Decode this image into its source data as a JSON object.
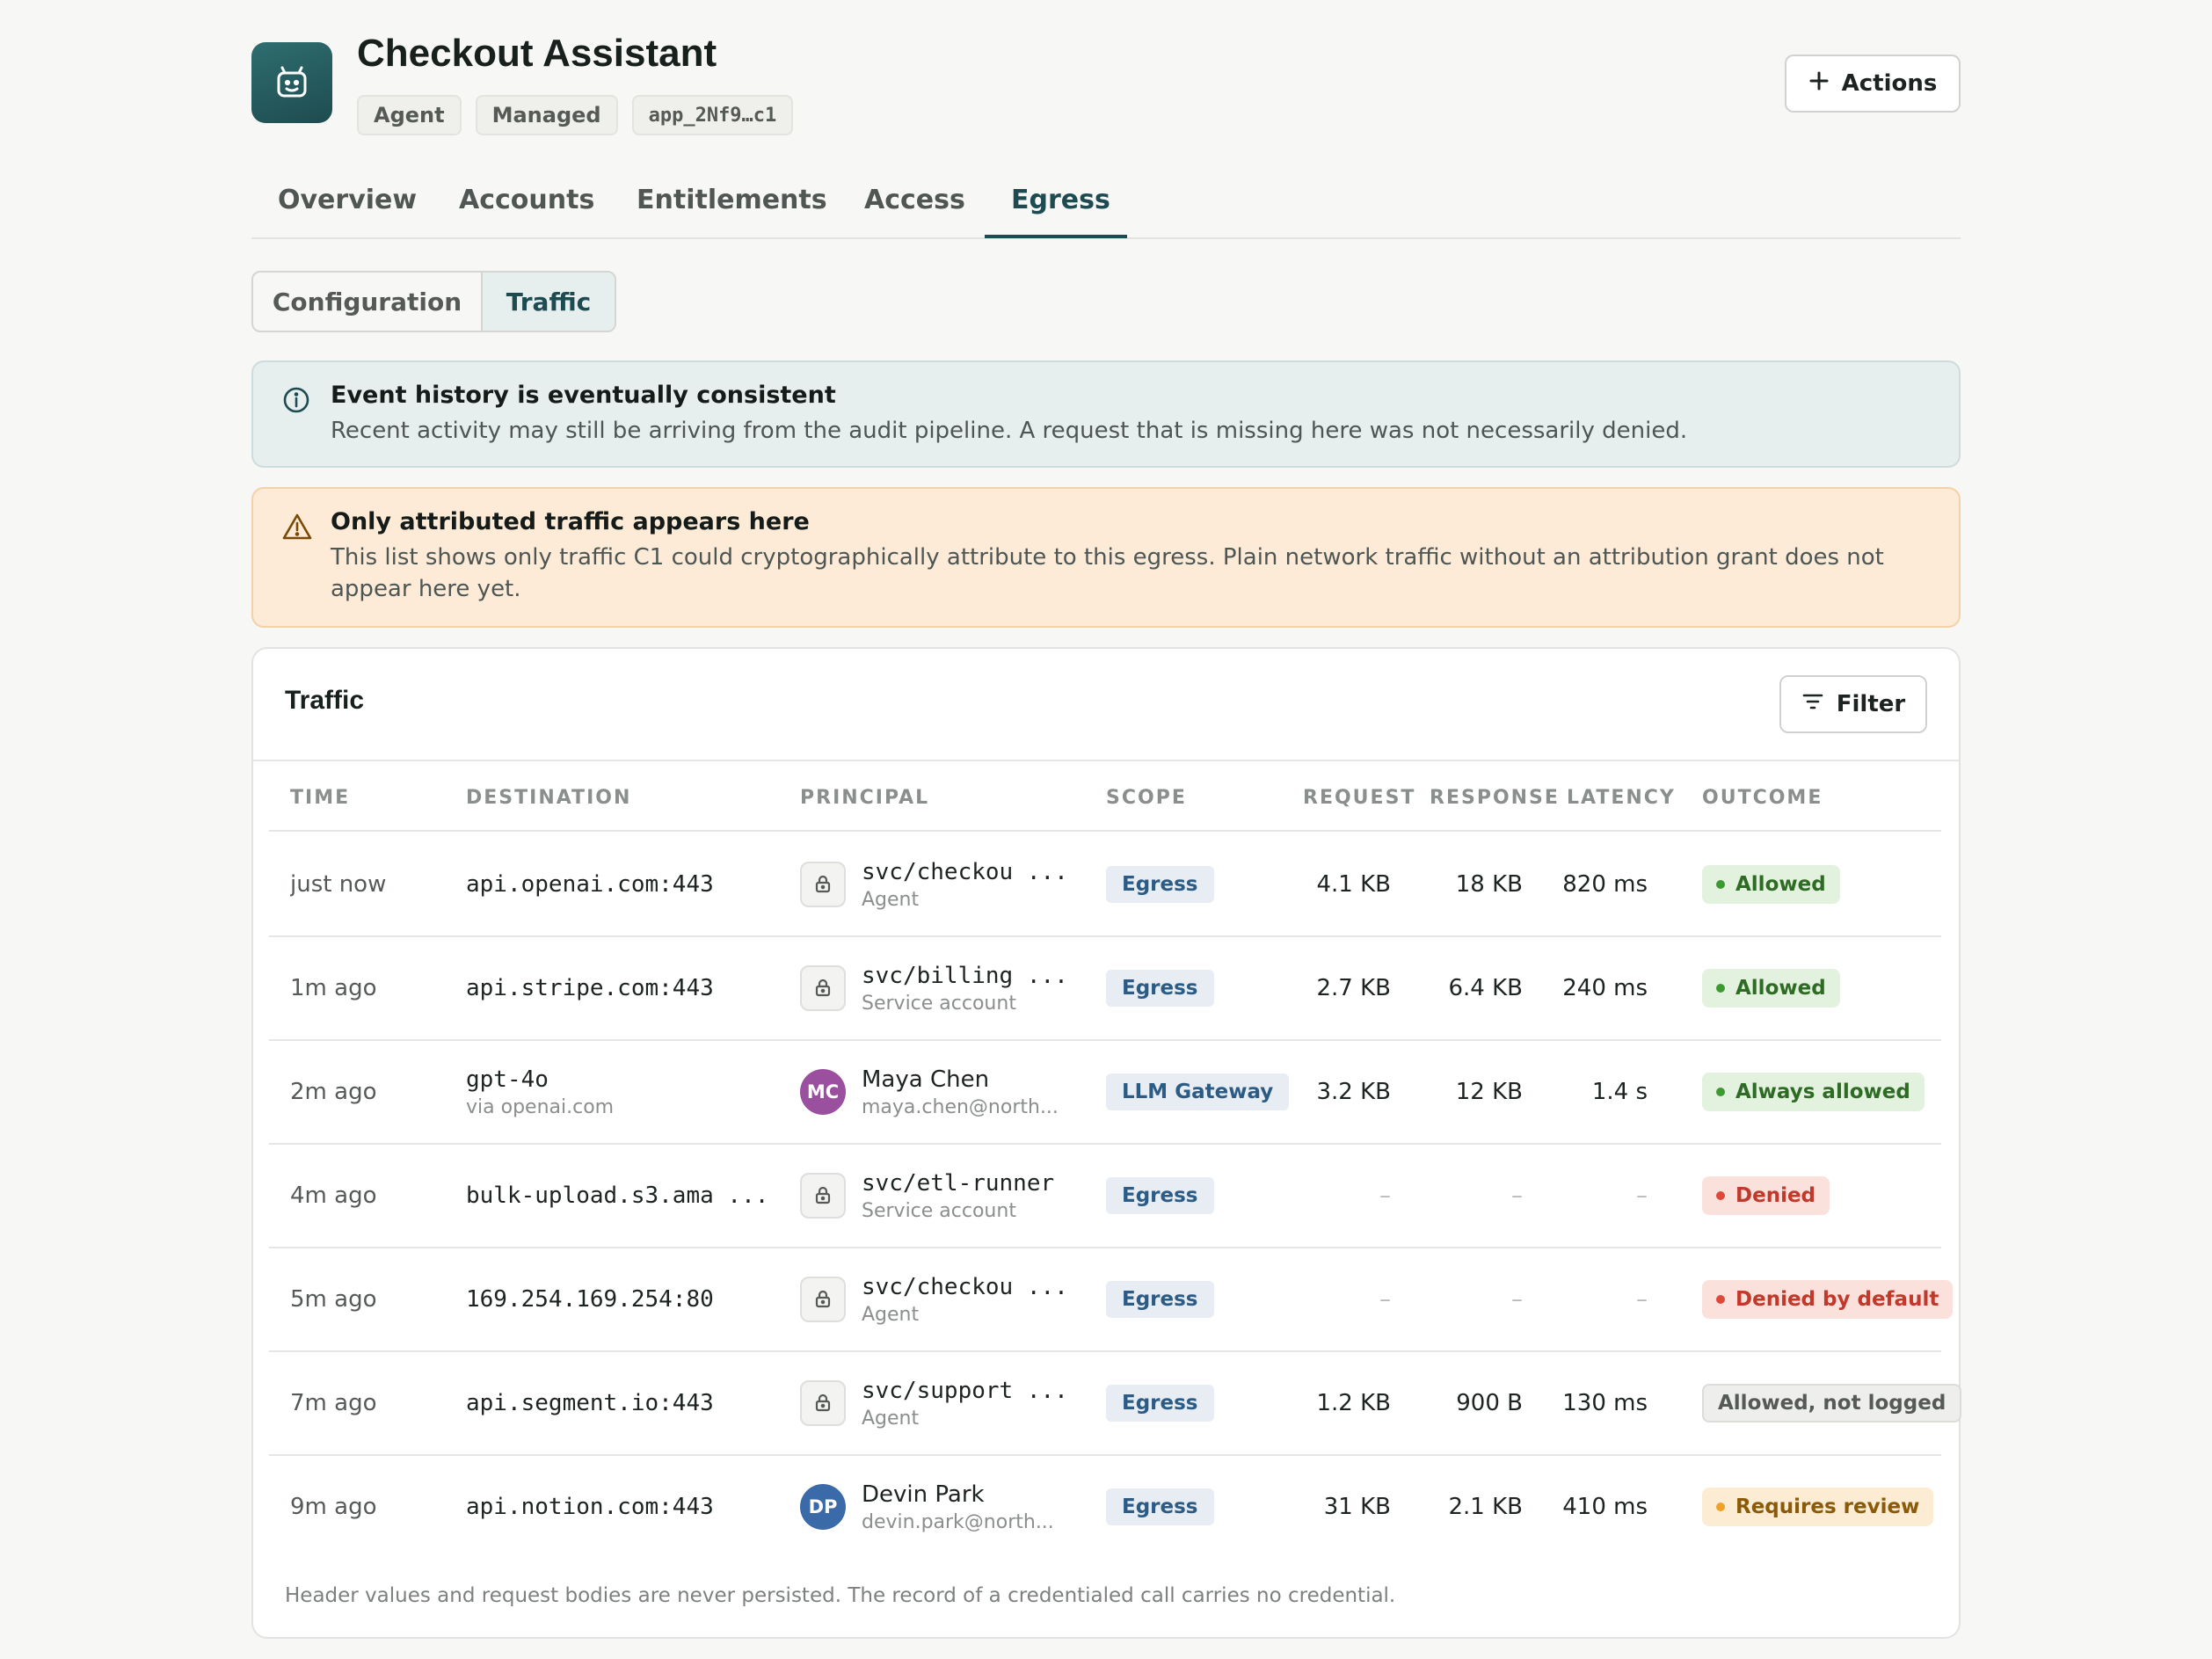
{
  "app": {
    "title": "Checkout Assistant",
    "chips": [
      "Agent",
      "Managed",
      "app_2Nf9…c1"
    ],
    "actions_label": "Actions"
  },
  "tabs": [
    {
      "label": "Overview"
    },
    {
      "label": "Accounts"
    },
    {
      "label": "Entitlements"
    },
    {
      "label": "Access"
    },
    {
      "label": "Egress",
      "active": true
    }
  ],
  "subtabs": [
    {
      "label": "Configuration"
    },
    {
      "label": "Traffic",
      "active": true
    }
  ],
  "alerts": {
    "info": {
      "title": "Event history is eventually consistent",
      "body": "Recent activity may still be arriving from the audit pipeline. A request that is missing here was not necessarily denied."
    },
    "warning": {
      "title": "Only attributed traffic appears here",
      "body": "This list shows only traffic C1 could cryptographically attribute to this egress. Plain network traffic without an attribution grant does not appear here yet."
    }
  },
  "traffic": {
    "title": "Traffic",
    "filter_label": "Filter",
    "columns": [
      "TIME",
      "DESTINATION",
      "PRINCIPAL",
      "SCOPE",
      "REQUEST",
      "RESPONSE",
      "LATENCY",
      "OUTCOME"
    ],
    "rows": [
      {
        "time": "just now",
        "destination": "api.openai.com:443",
        "destination_sub": "",
        "principal": "svc/checkou ...",
        "principal_sub": "Agent",
        "principal_kind": "service",
        "scope": "Egress",
        "request": "4.1 KB",
        "response": "18 KB",
        "latency": "820 ms",
        "outcome": "Allowed",
        "outcome_style": "allowed"
      },
      {
        "time": "1m ago",
        "destination": "api.stripe.com:443",
        "destination_sub": "",
        "principal": "svc/billing ...",
        "principal_sub": "Service account",
        "principal_kind": "service",
        "scope": "Egress",
        "request": "2.7 KB",
        "response": "6.4 KB",
        "latency": "240 ms",
        "outcome": "Allowed",
        "outcome_style": "allowed"
      },
      {
        "time": "2m ago",
        "destination": "gpt-4o",
        "destination_sub": "via openai.com",
        "principal": "Maya Chen",
        "principal_sub": "maya.chen@north...",
        "principal_kind": "user",
        "initials": "MC",
        "avatar_color": "#9b4f9f",
        "scope": "LLM Gateway",
        "request": "3.2 KB",
        "response": "12 KB",
        "latency": "1.4 s",
        "outcome": "Always allowed",
        "outcome_style": "allowed"
      },
      {
        "time": "4m ago",
        "destination": "bulk-upload.s3.ama ...",
        "destination_sub": "",
        "principal": "svc/etl-runner",
        "principal_sub": "Service account",
        "principal_kind": "service",
        "scope": "Egress",
        "request": "–",
        "response": "–",
        "latency": "–",
        "outcome": "Denied",
        "outcome_style": "denied"
      },
      {
        "time": "5m ago",
        "destination": "169.254.169.254:80",
        "destination_sub": "",
        "principal": "svc/checkou ...",
        "principal_sub": "Agent",
        "principal_kind": "service",
        "scope": "Egress",
        "request": "–",
        "response": "–",
        "latency": "–",
        "outcome": "Denied by default",
        "outcome_style": "denied"
      },
      {
        "time": "7m ago",
        "destination": "api.segment.io:443",
        "destination_sub": "",
        "principal": "svc/support ...",
        "principal_sub": "Agent",
        "principal_kind": "service",
        "scope": "Egress",
        "request": "1.2 KB",
        "response": "900 B",
        "latency": "130 ms",
        "outcome": "Allowed, not logged",
        "outcome_style": "neutral"
      },
      {
        "time": "9m ago",
        "destination": "api.notion.com:443",
        "destination_sub": "",
        "principal": "Devin Park",
        "principal_sub": "devin.park@north...",
        "principal_kind": "user",
        "initials": "DP",
        "avatar_color": "#3b6aa8",
        "scope": "Egress",
        "request": "31 KB",
        "response": "2.1 KB",
        "latency": "410 ms",
        "outcome": "Requires review",
        "outcome_style": "review"
      }
    ],
    "footnote": "Header values and request bodies are never persisted. The record of a credentialed call carries no credential."
  },
  "icons": {
    "app": "robot-icon",
    "actions": "plus-icon",
    "filter": "filter-icon",
    "info": "info-icon",
    "warning": "warning-icon",
    "service_principal": "lock-icon"
  }
}
